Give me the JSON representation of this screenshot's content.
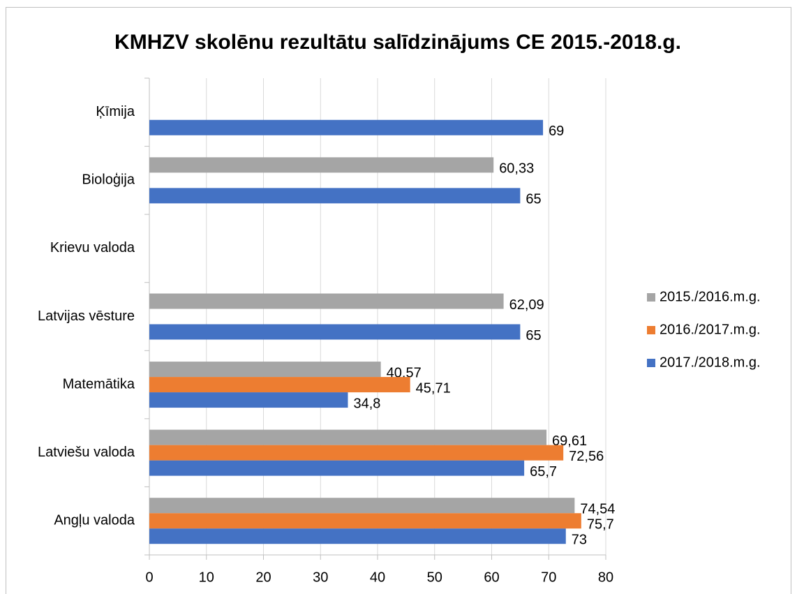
{
  "chart_data": {
    "type": "bar",
    "orientation": "horizontal",
    "title": "KMHZV skolēnu rezultātu salīdzinājums CE 2015.-2018.g.",
    "categories": [
      "Angļu valoda",
      "Latviešu valoda",
      "Matemātika",
      "Latvijas vēsture",
      "Krievu valoda",
      "Bioloģija",
      "Ķīmija"
    ],
    "series": [
      {
        "name": "2015./2016.m.g.",
        "color": "#a5a5a5",
        "values": [
          74.54,
          69.61,
          40.57,
          62.09,
          null,
          60.33,
          null
        ],
        "value_labels": [
          "74,54",
          "69,61",
          "40,57",
          "62,09",
          null,
          "60,33",
          null
        ]
      },
      {
        "name": "2016./2017.m.g.",
        "color": "#ed7d31",
        "values": [
          75.7,
          72.56,
          45.71,
          null,
          null,
          null,
          null
        ],
        "value_labels": [
          "75,7",
          "72,56",
          "45,71",
          null,
          null,
          null,
          null
        ]
      },
      {
        "name": "2017./2018.m.g.",
        "color": "#4472c4",
        "values": [
          73,
          65.7,
          34.8,
          65,
          null,
          65,
          69
        ],
        "value_labels": [
          "73",
          "65,7",
          "34,8",
          "65",
          null,
          "65",
          "69"
        ]
      }
    ],
    "xlim": [
      0,
      80
    ],
    "xticks": [
      0,
      10,
      20,
      30,
      40,
      50,
      60,
      70,
      80
    ],
    "grid": true,
    "legend": "right"
  }
}
